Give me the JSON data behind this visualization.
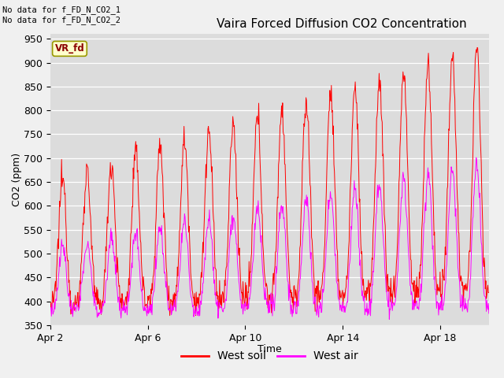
{
  "title": "Vaira Forced Diffusion CO2 Concentration",
  "xlabel": "Time",
  "ylabel": "CO2 (ppm)",
  "ylim": [
    350,
    960
  ],
  "yticks": [
    350,
    400,
    450,
    500,
    550,
    600,
    650,
    700,
    750,
    800,
    850,
    900,
    950
  ],
  "xtick_labels": [
    "Apr 2",
    "Apr 6",
    "Apr 10",
    "Apr 14",
    "Apr 18"
  ],
  "xtick_positions": [
    0,
    4,
    8,
    12,
    16
  ],
  "annotation_text": "No data for f_FD_N_CO2_1\nNo data for f_FD_N_CO2_2",
  "legend_label1": "West soil",
  "legend_label2": "West air",
  "color_soil": "#FF0000",
  "color_air": "#FF00FF",
  "vr_fd_label": "VR_fd",
  "vr_fd_color_bg": "#FFFFCC",
  "vr_fd_color_text": "#8B0000",
  "plot_bg": "#DCDCDC",
  "fig_bg": "#F0F0F0",
  "title_fontsize": 11,
  "axis_fontsize": 9,
  "tick_fontsize": 9,
  "n_days": 18,
  "soil_base": 600,
  "soil_peak": 200,
  "air_base": 470,
  "air_peak": 150
}
